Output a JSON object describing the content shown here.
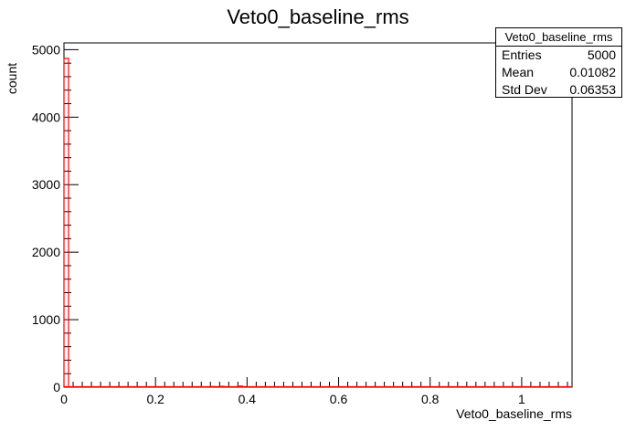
{
  "chart_data": {
    "type": "bar",
    "title": "Veto0_baseline_rms",
    "xlabel": "Veto0_baseline_rms",
    "ylabel": "count",
    "xlim": [
      0,
      1.11
    ],
    "ylim": [
      0,
      5100
    ],
    "xticks": [
      "0",
      "0.2",
      "0.4",
      "0.6",
      "0.8",
      "1"
    ],
    "yticks": [
      "0",
      "1000",
      "2000",
      "3000",
      "4000",
      "5000"
    ],
    "bins": [
      {
        "x": 0.005,
        "value": 4870
      },
      {
        "x": 0.325,
        "value": 8
      },
      {
        "x": 0.345,
        "value": 12
      },
      {
        "x": 0.385,
        "value": 15
      }
    ],
    "line_color": "#ff0000",
    "grid": false,
    "stats": {
      "title": "Veto0_baseline_rms",
      "entries_label": "Entries",
      "entries": "5000",
      "mean_label": "Mean",
      "mean": "0.01082",
      "stddev_label": "Std Dev",
      "stddev": "0.06353"
    }
  }
}
